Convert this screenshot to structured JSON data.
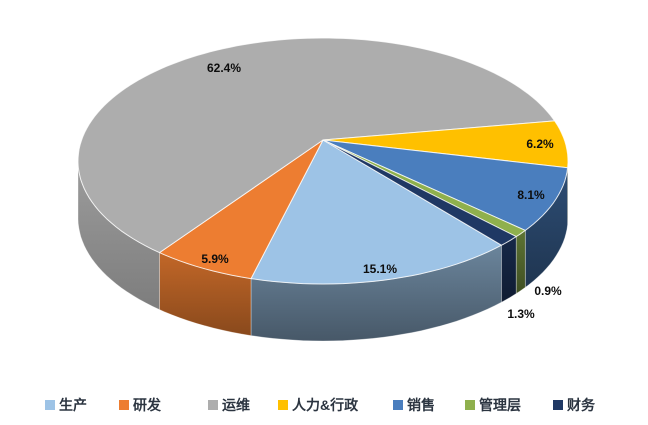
{
  "background": "#FFFFFF",
  "chart_data": {
    "type": "pie",
    "style": "3d",
    "title": "",
    "direction": "clockwise",
    "start_angle_deg": 140,
    "legend_position": "bottom",
    "slices": [
      {
        "name": "生产",
        "value": 15.1,
        "value_label": "15.1%",
        "color": "#9DC3E6"
      },
      {
        "name": "研发",
        "value": 5.9,
        "value_label": "5.9%",
        "color": "#ED7D31"
      },
      {
        "name": "运维",
        "value": 62.4,
        "value_label": "62.4%",
        "color": "#ADADAD"
      },
      {
        "name": "人力&行政",
        "value": 6.2,
        "value_label": "6.2%",
        "color": "#FFC000"
      },
      {
        "name": "销售",
        "value": 8.1,
        "value_label": "8.1%",
        "color": "#4A7EBE"
      },
      {
        "name": "管理层",
        "value": 0.9,
        "value_label": "0.9%",
        "color": "#8FB04D"
      },
      {
        "name": "财务",
        "value": 1.3,
        "value_label": "1.3%",
        "color": "#1F3864"
      }
    ],
    "value_label_color": "#0D0D0D",
    "legend_text_color": "#2B3440"
  }
}
